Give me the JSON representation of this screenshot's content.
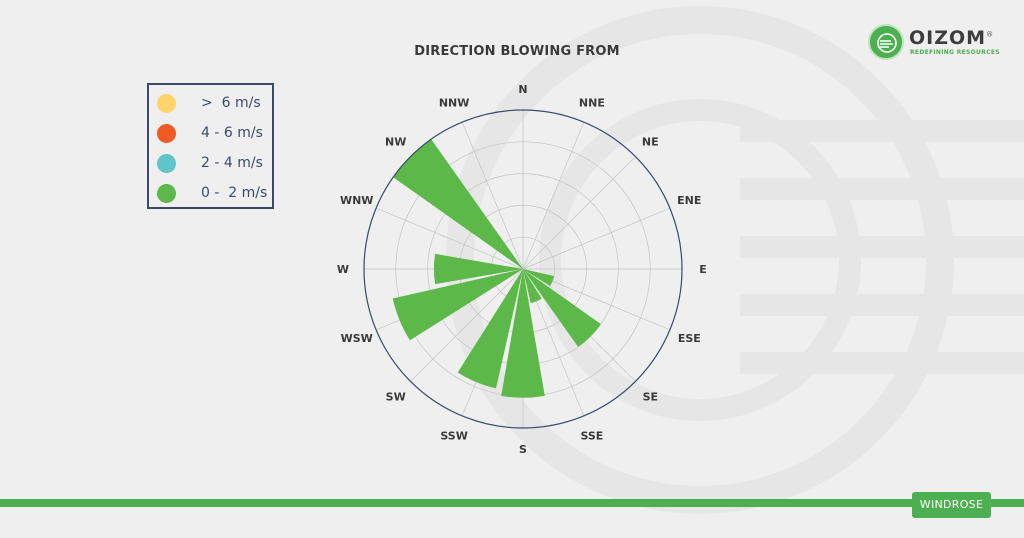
{
  "logo": {
    "name": "OIZOM",
    "tagline": "REDEFINING RESOURCES",
    "mark": "®"
  },
  "legend": {
    "items": [
      {
        "label": ">  6 m/s",
        "color": "#fdd46a"
      },
      {
        "label": "4 - 6 m/s",
        "color": "#f15a24"
      },
      {
        "label": "2 - 4 m/s",
        "color": "#5ec6c8"
      },
      {
        "label": "0 -  2 m/s",
        "color": "#5cb849"
      }
    ]
  },
  "badge": {
    "label": "WINDROSE"
  },
  "colors": {
    "accent": "#4caf50",
    "petal": "#5cb849",
    "ring": "#3b4a6b",
    "grid": "#c4c4c4"
  },
  "chart_data": {
    "type": "windrose",
    "title": "DIRECTION BLOWING FROM",
    "directions": [
      "N",
      "NNE",
      "NE",
      "ENE",
      "E",
      "ESE",
      "SE",
      "SSE",
      "S",
      "SSW",
      "SW",
      "WSW",
      "W",
      "WNW",
      "NW",
      "NNW"
    ],
    "series": [
      {
        "name": "0 -  2 m/s",
        "values": [
          0,
          0,
          0,
          0,
          0,
          0.2,
          0.6,
          0.22,
          0.81,
          0.77,
          0,
          0.84,
          0.56,
          0,
          1.0,
          0
        ]
      }
    ],
    "rmax": 1.0,
    "grid_rings": [
      0.2,
      0.4,
      0.6,
      0.8
    ]
  }
}
